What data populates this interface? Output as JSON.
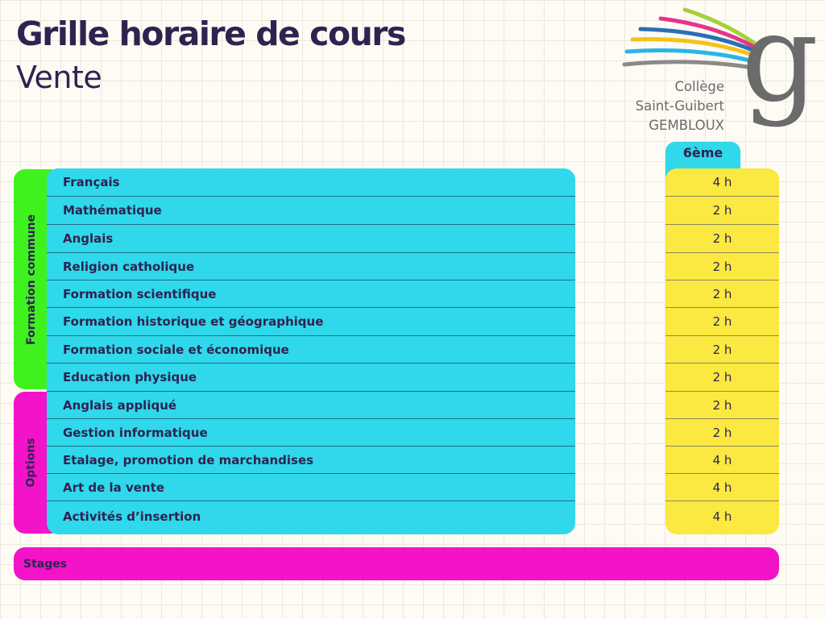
{
  "header": {
    "title": "Grille horaire de cours",
    "subtitle": "Vente"
  },
  "logo": {
    "line1": "Collège",
    "line2": "Saint-Guibert",
    "line3": "GEMBLOUX",
    "letter": "g"
  },
  "column_header": "6ème",
  "groups": {
    "commune_label": "Formation commune",
    "options_label": "Options"
  },
  "rows": [
    {
      "subject": "Français",
      "hours": "4 h"
    },
    {
      "subject": "Mathématique",
      "hours": "2 h"
    },
    {
      "subject": "Anglais",
      "hours": "2 h"
    },
    {
      "subject": "Religion catholique",
      "hours": "2 h"
    },
    {
      "subject": "Formation scientifique",
      "hours": "2 h"
    },
    {
      "subject": "Formation historique et géographique",
      "hours": "2 h"
    },
    {
      "subject": "Formation sociale et économique",
      "hours": "2 h"
    },
    {
      "subject": "Education physique",
      "hours": "2 h"
    },
    {
      "subject": "Anglais appliqué",
      "hours": "2 h"
    },
    {
      "subject": "Gestion informatique",
      "hours": "2 h"
    },
    {
      "subject": "Etalage, promotion de marchandises",
      "hours": "4 h"
    },
    {
      "subject": "Art de la vente",
      "hours": "4 h"
    },
    {
      "subject": "Activités d’insertion",
      "hours": "4 h"
    }
  ],
  "stages_label": "Stages",
  "colors": {
    "cyan": "#2fd8ea",
    "yellow": "#fbe840",
    "green": "#3ff21d",
    "magenta": "#f313c8",
    "navy": "#2e2350"
  }
}
